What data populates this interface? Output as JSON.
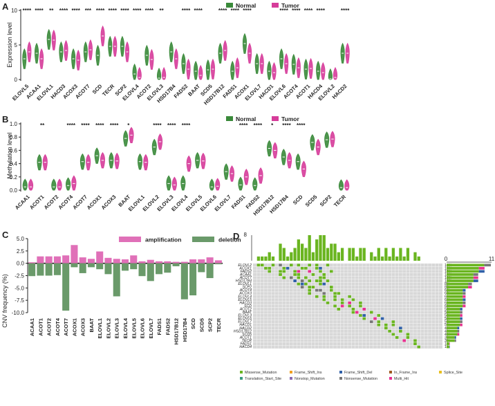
{
  "colors": {
    "normal": "#3a8a3a",
    "tumor": "#d63c9a",
    "amp": "#e070b8",
    "del": "#6a9a6a",
    "grey": "#d8d8d8"
  },
  "panel_labels": [
    "A",
    "B",
    "C",
    "D"
  ],
  "panel_d_axis": {
    "top_max": "8",
    "side_zero": "0",
    "side_max": "11"
  },
  "chart_data": [
    {
      "type": "violin",
      "panel": "A",
      "ylabel": "Expression level",
      "ylim": [
        0,
        10
      ],
      "yticks": [
        "0",
        "5",
        "10"
      ],
      "legend": [
        "Normal",
        "Tumor"
      ],
      "categories": [
        "ELOVL5",
        "ACAA1",
        "ELOVL1",
        "HACD3",
        "ACOX3",
        "ACOT7",
        "SCD",
        "TECR",
        "SCP2",
        "ELOVL4",
        "ACOT2",
        "ELOVL3",
        "HSD17B4",
        "FADS2",
        "BAAT",
        "SCD5",
        "HSD17B12",
        "FADS1",
        "ACOX1",
        "ELOVL7",
        "HACD1",
        "ELOVL6",
        "ACOT4",
        "ACOT1",
        "HACD4",
        "ELOVL2",
        "HACD2"
      ],
      "series": [
        {
          "name": "Normal",
          "values": [
            3.0,
            3.8,
            5.8,
            4.0,
            3.0,
            4.0,
            3.5,
            4.8,
            4.8,
            0.8,
            3.5,
            0.2,
            4.0,
            2.3,
            1.2,
            1.4,
            3.8,
            1.2,
            5.2,
            2.3,
            1.2,
            3.0,
            2.2,
            1.5,
            1.2,
            0.1,
            3.8
          ]
        },
        {
          "name": "Tumor",
          "values": [
            4.0,
            3.0,
            5.7,
            4.2,
            2.8,
            4.3,
            6.3,
            4.8,
            4.0,
            0.3,
            2.9,
            0.3,
            3.0,
            1.5,
            0.6,
            1.5,
            4.2,
            1.7,
            3.8,
            2.3,
            1.0,
            2.3,
            1.7,
            1.6,
            1.0,
            0.3,
            3.8
          ]
        }
      ],
      "significance": [
        "****",
        "****",
        "**",
        "****",
        "****",
        "***",
        "****",
        "****",
        "****",
        "****",
        "****",
        "**",
        "",
        "****",
        "****",
        "",
        "****",
        "****",
        "****",
        "",
        "",
        "****",
        "****",
        "****",
        "****",
        "",
        "****"
      ]
    },
    {
      "type": "violin",
      "panel": "B",
      "ylabel": "Methylation level",
      "ylim": [
        0,
        1.0
      ],
      "yticks": [
        "0.0",
        "0.2",
        "0.4",
        "0.6",
        "0.8",
        "1.0"
      ],
      "legend": [
        "Normal",
        "Tumor"
      ],
      "categories": [
        "ACAA1",
        "ACOT1",
        "ACOT2",
        "ACOT4",
        "ACOT7",
        "ACOX1",
        "ACOX3",
        "BAAT",
        "ELOVL1",
        "ELOVL2",
        "ELOVL3",
        "ELOVL4",
        "ELOVL5",
        "ELOVL6",
        "ELOVL7",
        "FADS1",
        "FADS2",
        "HSD17B12",
        "HSD17B4",
        "SCD",
        "SCD5",
        "SCP2",
        "TECR"
      ],
      "series": [
        {
          "name": "Normal",
          "values": [
            0.05,
            0.42,
            0.05,
            0.07,
            0.43,
            0.52,
            0.45,
            0.78,
            0.43,
            0.65,
            0.1,
            0.1,
            0.45,
            0.05,
            0.28,
            0.08,
            0.07,
            0.63,
            0.5,
            0.43,
            0.72,
            0.76,
            0.04
          ]
        },
        {
          "name": "Tumor",
          "values": [
            0.05,
            0.42,
            0.05,
            0.1,
            0.42,
            0.45,
            0.44,
            0.83,
            0.42,
            0.73,
            0.08,
            0.4,
            0.44,
            0.06,
            0.25,
            0.2,
            0.22,
            0.6,
            0.45,
            0.32,
            0.65,
            0.77,
            0.04
          ]
        }
      ],
      "significance": [
        "",
        "**",
        "",
        "****",
        "****",
        "****",
        "****",
        "*",
        "",
        "****",
        "****",
        "****",
        "",
        "",
        "",
        "****",
        "****",
        "*",
        "****",
        "****",
        "",
        "",
        ""
      ]
    },
    {
      "type": "bar",
      "panel": "C",
      "ylabel": "CNV frequency (%)",
      "ylim": [
        -10,
        5
      ],
      "yticks": [
        "5.0",
        "2.5",
        "0.0",
        "-2.5",
        "-5.0",
        "-7.5",
        "-10.0"
      ],
      "categories": [
        "ACAA1",
        "ACOT1",
        "ACOT2",
        "ACOT4",
        "ACOT7",
        "ACOX1",
        "ACOX3",
        "BAAT",
        "ELOVL1",
        "ELOVL2",
        "ELOVL3",
        "ELOVL4",
        "ELOVL5",
        "ELOVL6",
        "ELOVL7",
        "FADS1",
        "FADS2",
        "HSD17B12",
        "HSD17B4",
        "SCD",
        "SCD5",
        "SCP2",
        "TECR"
      ],
      "series": [
        {
          "name": "amplification",
          "values": [
            0.2,
            1.4,
            1.4,
            1.4,
            1.6,
            3.7,
            1.2,
            0.9,
            2.4,
            1.1,
            0.9,
            0.8,
            1.6,
            0.4,
            0.7,
            0.4,
            0.4,
            0.3,
            0.3,
            0.8,
            0.8,
            1.2,
            0.6
          ]
        },
        {
          "name": "deletion",
          "values": [
            -2.6,
            -2.5,
            -2.5,
            -2.4,
            -9.6,
            -0.8,
            -2.0,
            -0.8,
            -1.2,
            -2.2,
            -6.7,
            -1.5,
            -1.2,
            -2.6,
            -3.6,
            -2.2,
            -1.9,
            -0.6,
            -7.3,
            -6.5,
            -1.8,
            -3.0,
            -0.2
          ]
        }
      ]
    },
    {
      "type": "oncoplot",
      "panel": "D",
      "genes": [
        "ELOVL2",
        "ACOX1",
        "FADS2",
        "ACAA1",
        "ACOT7",
        "HSD17B4",
        "ELOVL1",
        "SCP2",
        "ACOT4",
        "ACOX3",
        "ELOVL4",
        "ELOVL5",
        "HACD3",
        "SCD",
        "ACOT2",
        "BAAT",
        "ELOVL3",
        "ELOVL6",
        "ELOVL7",
        "HACD1",
        "HACD2",
        "HSD17B12",
        "SCD5",
        "ACOT1",
        "TECR",
        "FADS1",
        "HACD4"
      ],
      "percentages": [
        "14%",
        "12%",
        "12%",
        "10%",
        "10%",
        "10%",
        "8%",
        "8%",
        "6%",
        "6%",
        "6%",
        "6%",
        "6%",
        "6%",
        "5%",
        "5%",
        "5%",
        "5%",
        "5%",
        "5%",
        "4%",
        "4%",
        "4%",
        "3%",
        "3%",
        "1%",
        "1%"
      ],
      "legend": [
        "Missense_Mutation",
        "Frame_Shift_Ins",
        "Frame_Shift_Del",
        "In_Frame_Ins",
        "Splice_Site",
        "Translation_Start_Site",
        "Nonstop_Mutation",
        "Nonsense_Mutation",
        "Multi_Hit"
      ],
      "legend_colors": [
        "#6ab520",
        "#f2a020",
        "#3060a8",
        "#a05a20",
        "#e8c020",
        "#3a9a80",
        "#8a6ab0",
        "#777777",
        "#e83090"
      ]
    }
  ]
}
